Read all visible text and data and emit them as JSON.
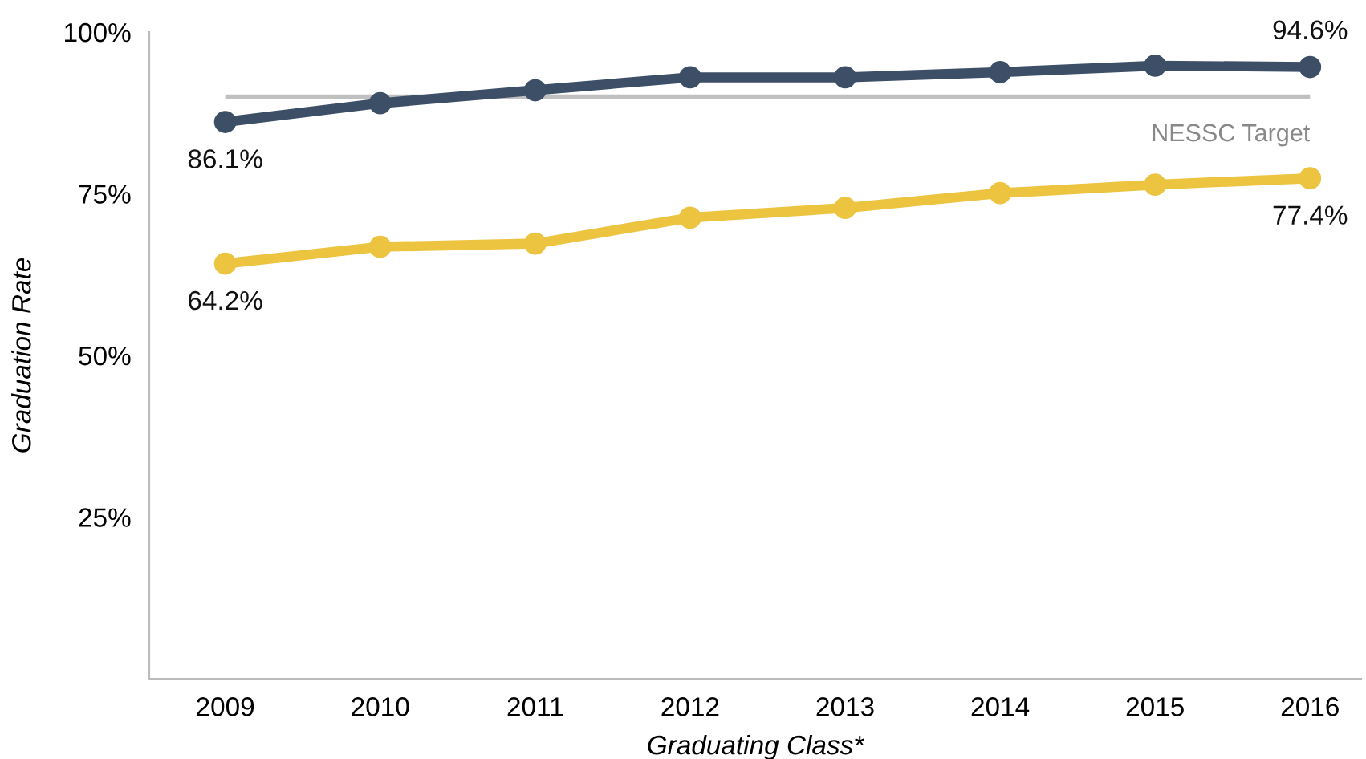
{
  "chart_data": {
    "type": "line",
    "xlabel": "Graduating Class*",
    "ylabel": "Graduation Rate",
    "categories": [
      "2009",
      "2010",
      "2011",
      "2012",
      "2013",
      "2014",
      "2015",
      "2016"
    ],
    "series": [
      {
        "color": "#3d4f66",
        "values": [
          86.1,
          89,
          91,
          93,
          93,
          93.8,
          94.8,
          94.6
        ],
        "value_labels": [
          "86.1%",
          null,
          null,
          null,
          null,
          null,
          null,
          "94.6%"
        ]
      },
      {
        "color": "#ecc440",
        "values": [
          64.2,
          66.8,
          67.3,
          71.3,
          72.8,
          75.1,
          76.4,
          77.4
        ],
        "value_labels": [
          "64.2%",
          null,
          null,
          null,
          null,
          null,
          null,
          "77.4%"
        ]
      }
    ],
    "ylim": [
      0,
      100
    ],
    "yticks": [
      {
        "value": 25,
        "label": "25%"
      },
      {
        "value": 50,
        "label": "50%"
      },
      {
        "value": 75,
        "label": "75%"
      },
      {
        "value": 100,
        "label": "100%"
      }
    ],
    "ref_lines": [
      {
        "axis": "y",
        "value": 90,
        "label": "NESSC Target",
        "color": "#c0c0c0"
      }
    ],
    "marker": "circle",
    "line_style": "solid",
    "grid": false,
    "legend": false
  }
}
